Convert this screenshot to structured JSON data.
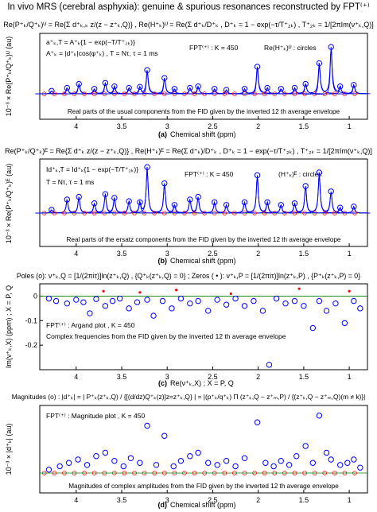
{
  "figure_title": "In vivo MRS (cerebral asphyxia): genuine & spurious resonances reconstructed by FPT⁽⁺⁾",
  "chart_data": [
    {
      "id": "a",
      "type": "line",
      "formula": "Re(P⁺ₖ/Q⁺ₖ)ᵁ = Re{Σ d⁺ₖ,ₖ z/(z − z⁺ₖ,Q)} , Re(H⁺ₖ)ᵁ = Re(Σ d⁺ₖ/D⁺ₖ ,  D⁺ₖ = 1 − exp(−τ/T⁺₂ₖ) , T⁺₂ₖ = 1/[2πIm(ν⁺ₖ,Q)]",
      "annotations": [
        "a⁺ₖ,T = A⁺ₖ{1 − exp(−T/T⁺₂ₖ)}",
        "A⁺ₖ = |d⁺ₖ|cos(φ⁺ₖ) , T = Nτ, τ = 1 ms",
        "FPT⁽⁺⁾ : K = 450",
        "Re(H⁺ₖ)ᵁ : circles"
      ],
      "ylabel": "10⁻³ × Re(P⁺ₖ/Q⁺ₖ)ᵁ (au)",
      "xlabel": "Chemical shift (ppm)",
      "xlim": [
        4.4,
        0.8
      ],
      "xticks": [
        "4",
        "3.5",
        "3",
        "2.5",
        "2",
        "1.5",
        "1"
      ],
      "caption_inside": "Real parts of the usual components from the FID given by the inverted 12 th average envelope",
      "panel_label": "(a)",
      "peaks": [
        {
          "x": 4.27,
          "y": 0.06
        },
        {
          "x": 4.1,
          "y": 0.12
        },
        {
          "x": 3.97,
          "y": 0.2
        },
        {
          "x": 3.8,
          "y": 0.1
        },
        {
          "x": 3.68,
          "y": 0.22
        },
        {
          "x": 3.58,
          "y": 0.15
        },
        {
          "x": 3.42,
          "y": 0.12
        },
        {
          "x": 3.3,
          "y": 0.14
        },
        {
          "x": 3.22,
          "y": 0.48
        },
        {
          "x": 3.03,
          "y": 0.32
        },
        {
          "x": 2.92,
          "y": 0.1
        },
        {
          "x": 2.75,
          "y": 0.12
        },
        {
          "x": 2.66,
          "y": 0.15
        },
        {
          "x": 2.48,
          "y": 0.1
        },
        {
          "x": 2.35,
          "y": 0.08
        },
        {
          "x": 2.15,
          "y": 0.1
        },
        {
          "x": 2.01,
          "y": 0.55
        },
        {
          "x": 1.9,
          "y": 0.12
        },
        {
          "x": 1.75,
          "y": 0.1
        },
        {
          "x": 1.6,
          "y": 0.12
        },
        {
          "x": 1.48,
          "y": 0.2
        },
        {
          "x": 1.33,
          "y": 0.62
        },
        {
          "x": 1.2,
          "y": 0.95
        },
        {
          "x": 1.1,
          "y": 0.15
        },
        {
          "x": 0.95,
          "y": 0.18
        }
      ]
    },
    {
      "id": "b",
      "type": "line",
      "formula": "Re(P⁺ₖ/Q⁺ₖ)ᴱ = Re{Σ d⁺ₖ z/(z − z⁺ₖ,Q)} , Re(H⁺ₖ)ᴱ = Re(Σ d⁺ₖ)/D⁺ₖ ,  D⁺ₖ = 1 − exp(−τ/T⁺₂ₖ) , T⁺₂ₖ = 1/[2πIm(ν⁺ₖ,Q)]",
      "annotations": [
        "Id⁺ₖ,T = Id⁺ₖ{1 − exp(−T/T⁺₂ₖ)}",
        "T = Nτ, τ = 1 ms",
        "FPT⁽⁺⁾ : K = 450",
        "(H⁺ₖ)ᴱ : circles"
      ],
      "ylabel": "10⁻³ × Re(P⁺ₖ/Q⁺ₖ)ᴱ (au)",
      "xlabel": "Chemical shift (ppm)",
      "xlim": [
        4.4,
        0.8
      ],
      "xticks": [
        "4",
        "3.5",
        "3",
        "2.5",
        "2",
        "1.5",
        "1"
      ],
      "caption_inside": "Real parts of the ersatz components from the FID given by the inverted 12 th average envelope",
      "panel_label": "(b)",
      "peaks": [
        {
          "x": 4.27,
          "y": 0.06
        },
        {
          "x": 4.1,
          "y": 0.25
        },
        {
          "x": 3.97,
          "y": 0.3
        },
        {
          "x": 3.8,
          "y": 0.18
        },
        {
          "x": 3.68,
          "y": 0.35
        },
        {
          "x": 3.58,
          "y": 0.28
        },
        {
          "x": 3.42,
          "y": 0.22
        },
        {
          "x": 3.3,
          "y": 0.2
        },
        {
          "x": 3.22,
          "y": 0.85
        },
        {
          "x": 3.03,
          "y": 0.55
        },
        {
          "x": 2.92,
          "y": 0.15
        },
        {
          "x": 2.75,
          "y": 0.25
        },
        {
          "x": 2.66,
          "y": 0.3
        },
        {
          "x": 2.48,
          "y": 0.2
        },
        {
          "x": 2.35,
          "y": 0.15
        },
        {
          "x": 2.15,
          "y": 0.2
        },
        {
          "x": 2.01,
          "y": 0.7
        },
        {
          "x": 1.9,
          "y": 0.2
        },
        {
          "x": 1.75,
          "y": 0.15
        },
        {
          "x": 1.6,
          "y": 0.18
        },
        {
          "x": 1.48,
          "y": 0.5
        },
        {
          "x": 1.33,
          "y": 0.75
        },
        {
          "x": 1.2,
          "y": 0.4
        },
        {
          "x": 1.1,
          "y": 0.1
        },
        {
          "x": 0.95,
          "y": 0.12
        }
      ]
    },
    {
      "id": "c",
      "type": "scatter",
      "formula": "Poles (o): ν⁺ₖ,Q = [1/(2πiτ)]ln(z⁺ₖ,Q) , {Q⁺ₖ(z⁺ₖ,Q) = 0} ; Zeros ( • ): ν⁺ₖ,P = [1/(2πiτ)]ln(z⁺ₖ,P) , {P⁺ₖ(z⁺ₖ,P) = 0}",
      "annotations": [
        "FPT⁽⁺⁾ : Argand plot , K = 450",
        "Complex frequencies from the FID given by the inverted 12 th average envelope"
      ],
      "ylabel": "Im(ν⁺ₖ,X) (ppm) ; X = P, Q",
      "xlabel": "Re(ν⁺ₖ,X) ; X = P, Q",
      "xlim": [
        4.4,
        0.8
      ],
      "ylim": [
        -0.3,
        0.05
      ],
      "yticks": [
        "0",
        "-0.1",
        "-0.2"
      ],
      "xticks": [
        "4",
        "3.5",
        "3",
        "2.5",
        "2",
        "1.5",
        "1"
      ],
      "panel_label": "(c)",
      "poles": [
        {
          "x": 4.3,
          "y": -0.01
        },
        {
          "x": 4.22,
          "y": -0.02
        },
        {
          "x": 4.1,
          "y": -0.03
        },
        {
          "x": 4.0,
          "y": -0.015
        },
        {
          "x": 3.92,
          "y": -0.025
        },
        {
          "x": 3.85,
          "y": -0.07
        },
        {
          "x": 3.78,
          "y": -0.012
        },
        {
          "x": 3.68,
          "y": -0.04
        },
        {
          "x": 3.6,
          "y": -0.02
        },
        {
          "x": 3.52,
          "y": -0.01
        },
        {
          "x": 3.42,
          "y": -0.05
        },
        {
          "x": 3.33,
          "y": -0.025
        },
        {
          "x": 3.22,
          "y": -0.015
        },
        {
          "x": 3.15,
          "y": -0.08
        },
        {
          "x": 3.05,
          "y": -0.02
        },
        {
          "x": 2.95,
          "y": -0.05
        },
        {
          "x": 2.85,
          "y": -0.01
        },
        {
          "x": 2.75,
          "y": -0.03
        },
        {
          "x": 2.66,
          "y": -0.02
        },
        {
          "x": 2.55,
          "y": -0.06
        },
        {
          "x": 2.45,
          "y": -0.015
        },
        {
          "x": 2.35,
          "y": -0.035
        },
        {
          "x": 2.25,
          "y": -0.01
        },
        {
          "x": 2.15,
          "y": -0.04
        },
        {
          "x": 2.05,
          "y": -0.02
        },
        {
          "x": 1.95,
          "y": -0.06
        },
        {
          "x": 1.88,
          "y": -0.28
        },
        {
          "x": 1.8,
          "y": -0.01
        },
        {
          "x": 1.7,
          "y": -0.03
        },
        {
          "x": 1.6,
          "y": -0.02
        },
        {
          "x": 1.5,
          "y": -0.04
        },
        {
          "x": 1.4,
          "y": -0.13
        },
        {
          "x": 1.33,
          "y": -0.02
        },
        {
          "x": 1.25,
          "y": -0.06
        },
        {
          "x": 1.15,
          "y": -0.03
        },
        {
          "x": 1.05,
          "y": -0.11
        },
        {
          "x": 0.95,
          "y": -0.02
        },
        {
          "x": 0.88,
          "y": -0.05
        }
      ],
      "zeros": [
        {
          "x": 3.7,
          "y": 0.02
        },
        {
          "x": 3.3,
          "y": 0.015
        },
        {
          "x": 2.9,
          "y": 0.025
        },
        {
          "x": 2.3,
          "y": 0.01
        },
        {
          "x": 1.55,
          "y": 0.03
        },
        {
          "x": 1.0,
          "y": 0.02
        }
      ]
    },
    {
      "id": "d",
      "type": "scatter",
      "formula": "Magnitudes (o) : |d⁺ₖ| = | P⁺ₖ(z⁺ₖ,Q) / {[(d/dz)Q⁺ₖ(z)]z=z⁺ₖ,Q} | = |(p⁺ₖ/q⁺ₖ) Π (z⁺ₖ,Q − z⁺ₘ,P) / {(z⁺ₖ,Q − z⁺ₘ,Q)(m ≠ k)}|",
      "annotations": [
        "FPT⁽⁺⁾ : Magnitude plot , K = 450"
      ],
      "ylabel": "10⁻³ × |d⁺ₖ| (au)",
      "xlabel": "Chemical shift (ppm)",
      "xlim": [
        4.4,
        0.8
      ],
      "xticks": [
        "4",
        "3.5",
        "3",
        "2.5",
        "2",
        "1.5",
        "1"
      ],
      "caption_inside": "Magnitudes of complex amplitudes from the FID given by the inverted 12 th average envelope",
      "panel_label": "(d)",
      "points": [
        {
          "x": 4.3,
          "y": 0.05
        },
        {
          "x": 4.18,
          "y": 0.1
        },
        {
          "x": 4.08,
          "y": 0.15
        },
        {
          "x": 3.98,
          "y": 0.2
        },
        {
          "x": 3.88,
          "y": 0.12
        },
        {
          "x": 3.78,
          "y": 0.25
        },
        {
          "x": 3.68,
          "y": 0.3
        },
        {
          "x": 3.58,
          "y": 0.18
        },
        {
          "x": 3.48,
          "y": 0.1
        },
        {
          "x": 3.4,
          "y": 0.22
        },
        {
          "x": 3.3,
          "y": 0.15
        },
        {
          "x": 3.22,
          "y": 0.7
        },
        {
          "x": 3.12,
          "y": 0.12
        },
        {
          "x": 3.03,
          "y": 0.55
        },
        {
          "x": 2.93,
          "y": 0.1
        },
        {
          "x": 2.85,
          "y": 0.18
        },
        {
          "x": 2.75,
          "y": 0.25
        },
        {
          "x": 2.66,
          "y": 0.3
        },
        {
          "x": 2.55,
          "y": 0.15
        },
        {
          "x": 2.45,
          "y": 0.12
        },
        {
          "x": 2.35,
          "y": 0.18
        },
        {
          "x": 2.25,
          "y": 0.1
        },
        {
          "x": 2.15,
          "y": 0.22
        },
        {
          "x": 2.01,
          "y": 0.75
        },
        {
          "x": 1.92,
          "y": 0.15
        },
        {
          "x": 1.83,
          "y": 0.1
        },
        {
          "x": 1.75,
          "y": 0.18
        },
        {
          "x": 1.66,
          "y": 0.12
        },
        {
          "x": 1.58,
          "y": 0.25
        },
        {
          "x": 1.48,
          "y": 0.4
        },
        {
          "x": 1.4,
          "y": 0.15
        },
        {
          "x": 1.33,
          "y": 0.85
        },
        {
          "x": 1.25,
          "y": 0.3
        },
        {
          "x": 1.2,
          "y": 0.2
        },
        {
          "x": 1.1,
          "y": 0.12
        },
        {
          "x": 1.02,
          "y": 0.15
        },
        {
          "x": 0.95,
          "y": 0.2
        },
        {
          "x": 0.88,
          "y": 0.08
        }
      ]
    }
  ],
  "colors": {
    "curve": "#0000ff",
    "pole": "#0000ff",
    "zero": "#ff0000",
    "hollow_ring": "#ff0000",
    "base": "#008000"
  }
}
